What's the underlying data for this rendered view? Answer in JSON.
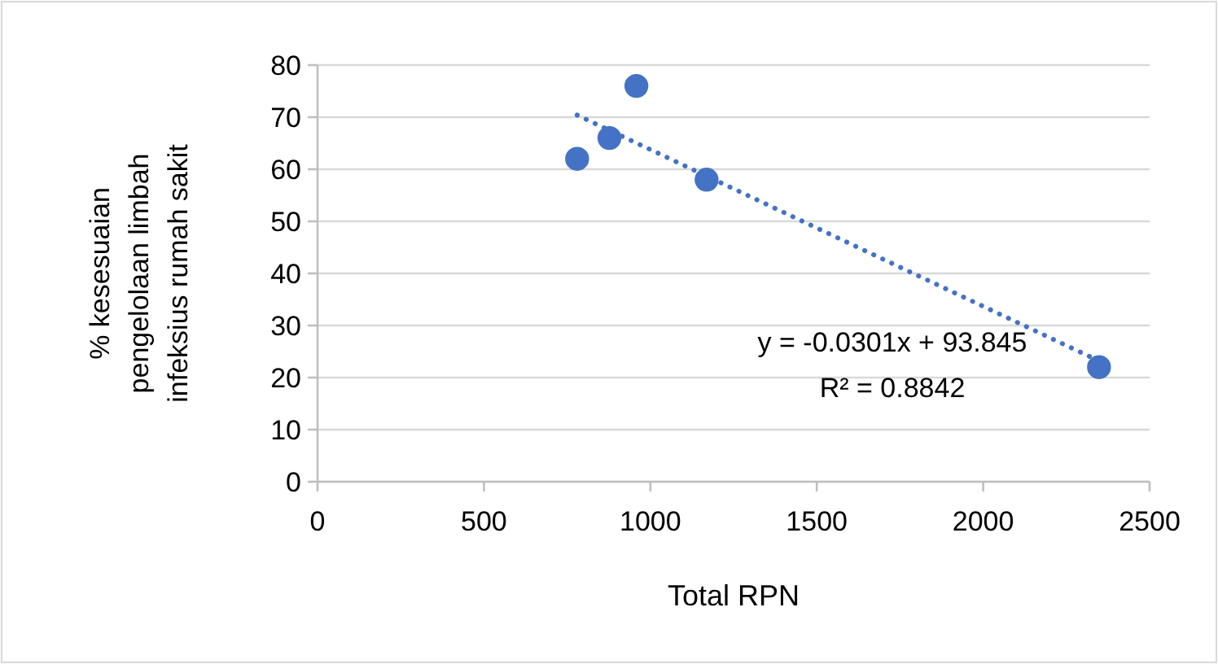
{
  "chart_data": {
    "type": "scatter",
    "xlabel": "Total RPN",
    "ylabel": "% kesesuaian pengelolaan limbah infeksius rumah sakit",
    "xlim": [
      0,
      2500
    ],
    "xticks": [
      0,
      500,
      1000,
      1500,
      2000,
      2500
    ],
    "ylim": [
      0,
      80
    ],
    "yticks": [
      0,
      10,
      20,
      30,
      40,
      50,
      60,
      70,
      80
    ],
    "grid": "y",
    "marker": "circle",
    "series": [
      {
        "color": "#4472c4",
        "x": [
          780,
          877,
          958,
          1169,
          2348
        ],
        "values": [
          62,
          66,
          76,
          58,
          22
        ]
      },
      {
        "type": "line",
        "color": "#4472c4",
        "line_style": "dotted",
        "marker": "none",
        "x": [
          780,
          2348
        ],
        "values": [
          70.4,
          23.2
        ]
      }
    ],
    "annotations": [
      "y = -0.0301x + 93.845",
      "R² = 0.8842"
    ]
  }
}
